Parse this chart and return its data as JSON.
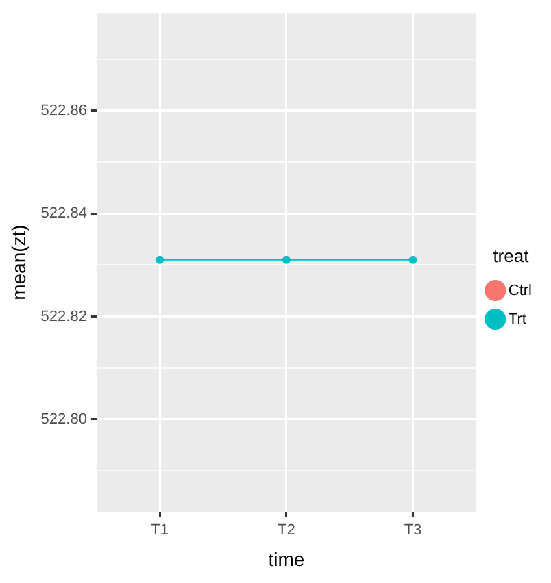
{
  "chart_data": {
    "type": "line",
    "xlabel": "time",
    "ylabel": "mean(zt)",
    "legend_title": "treat",
    "categories": [
      "T1",
      "T2",
      "T3"
    ],
    "series": [
      {
        "name": "Ctrl",
        "color": "#f8766d",
        "values": [
          null,
          null,
          null
        ]
      },
      {
        "name": "Trt",
        "color": "#00bfc4",
        "values": [
          522.831,
          522.831,
          522.831
        ]
      }
    ],
    "ylim": [
      522.782,
      522.879
    ],
    "yticks": [
      {
        "value": 522.79,
        "label": null
      },
      {
        "value": 522.8,
        "label": "522.80"
      },
      {
        "value": 522.81,
        "label": null
      },
      {
        "value": 522.82,
        "label": "522.82"
      },
      {
        "value": 522.83,
        "label": null
      },
      {
        "value": 522.84,
        "label": "522.84"
      },
      {
        "value": 522.85,
        "label": null
      },
      {
        "value": 522.86,
        "label": "522.86"
      },
      {
        "value": 522.87,
        "label": null
      }
    ],
    "grid": true,
    "legend": "right",
    "marker": "circle",
    "line_style": "solid"
  }
}
